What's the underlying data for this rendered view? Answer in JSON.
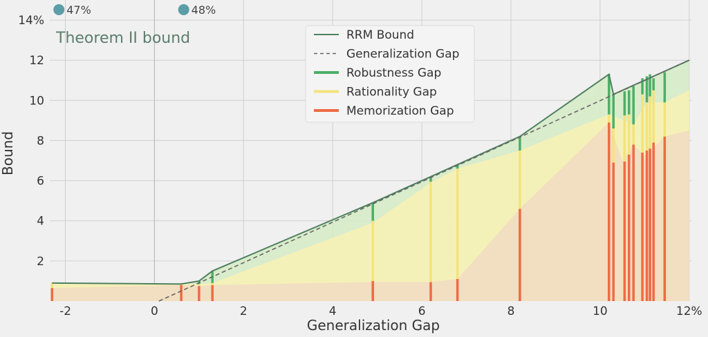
{
  "chart_data": {
    "type": "line",
    "subtitle": "Theorem II bound",
    "xlabel": "Generalization Gap",
    "ylabel": "Bound",
    "xlim": [
      -2.35,
      12.05
    ],
    "ylim": [
      0,
      15
    ],
    "x_ticks": [
      -2,
      0,
      2,
      4,
      6,
      8,
      10,
      12
    ],
    "x_tick_labels": [
      "-2",
      "0",
      "2",
      "4",
      "6",
      "8",
      "10",
      "12%"
    ],
    "y_ticks": [
      2,
      4,
      6,
      8,
      10,
      12,
      14
    ],
    "y_tick_labels": [
      "2",
      "4",
      "6",
      "8",
      "10",
      "12",
      "14%"
    ],
    "grid": true,
    "legend_position": "top-center",
    "top_markers": [
      {
        "x": -2.3,
        "label": "47%"
      },
      {
        "x": 0.5,
        "label": "48%"
      }
    ],
    "colors": {
      "rrm": "#4f7f5f",
      "gen_gap": "#666666",
      "robustness": "#4caf66",
      "rationality": "#f3e37c",
      "memorization": "#ef6a45",
      "marker": "#5b9ea7",
      "background": "#f0f0f0",
      "grid": "#cfcfcf"
    },
    "series": [
      {
        "name": "RRM Bound",
        "style": "solid",
        "x": [
          -2.3,
          0.6,
          1.0,
          1.3,
          4.9,
          6.2,
          6.8,
          8.2,
          10.2,
          10.3,
          11.4,
          12.0
        ],
        "y": [
          0.9,
          0.85,
          1.0,
          1.5,
          4.9,
          6.2,
          6.8,
          8.2,
          11.3,
          10.3,
          11.4,
          12.0
        ]
      },
      {
        "name": "Generalization Gap",
        "style": "dashed",
        "x": [
          0.1,
          12.0
        ],
        "y": [
          0.0,
          12.0
        ]
      }
    ],
    "legend": [
      {
        "name": "RRM Bound",
        "kind": "solid-line"
      },
      {
        "name": "Generalization Gap",
        "kind": "dashed-line"
      },
      {
        "name": "Robustness Gap",
        "kind": "bar"
      },
      {
        "name": "Rationality Gap",
        "kind": "bar"
      },
      {
        "name": "Memorization Gap",
        "kind": "bar"
      }
    ],
    "bars": [
      {
        "x": -2.3,
        "memorization": 0.65,
        "rationality": 0.25,
        "robustness": 0.0
      },
      {
        "x": 0.6,
        "memorization": 0.8,
        "rationality": 0.05,
        "robustness": 0.0
      },
      {
        "x": 1.0,
        "memorization": 0.75,
        "rationality": 0.1,
        "robustness": 0.15
      },
      {
        "x": 1.3,
        "memorization": 0.8,
        "rationality": 0.1,
        "robustness": 0.6
      },
      {
        "x": 4.9,
        "memorization": 1.0,
        "rationality": 3.0,
        "robustness": 0.9
      },
      {
        "x": 6.2,
        "memorization": 0.95,
        "rationality": 5.0,
        "robustness": 0.25
      },
      {
        "x": 6.8,
        "memorization": 1.1,
        "rationality": 5.5,
        "robustness": 0.2
      },
      {
        "x": 8.2,
        "memorization": 4.6,
        "rationality": 2.9,
        "robustness": 0.7
      },
      {
        "x": 10.2,
        "memorization": 8.9,
        "rationality": 0.4,
        "robustness": 2.0
      },
      {
        "x": 10.3,
        "memorization": 6.9,
        "rationality": 1.7,
        "robustness": 1.7
      },
      {
        "x": 10.55,
        "memorization": 6.95,
        "rationality": 2.3,
        "robustness": 1.2
      },
      {
        "x": 10.65,
        "memorization": 7.3,
        "rationality": 2.0,
        "robustness": 1.2
      },
      {
        "x": 10.75,
        "memorization": 7.8,
        "rationality": 1.0,
        "robustness": 1.9
      },
      {
        "x": 10.95,
        "memorization": 7.4,
        "rationality": 2.9,
        "robustness": 0.8
      },
      {
        "x": 11.05,
        "memorization": 7.5,
        "rationality": 2.4,
        "robustness": 1.3
      },
      {
        "x": 11.12,
        "memorization": 7.6,
        "rationality": 2.6,
        "robustness": 1.1
      },
      {
        "x": 11.2,
        "memorization": 7.9,
        "rationality": 2.6,
        "robustness": 0.6
      },
      {
        "x": 11.45,
        "memorization": 8.2,
        "rationality": 1.7,
        "robustness": 1.5
      }
    ],
    "bands": {
      "memorization_upper": [
        [
          -2.3,
          0.65
        ],
        [
          0.6,
          0.8
        ],
        [
          1.0,
          0.75
        ],
        [
          1.3,
          0.8
        ],
        [
          4.9,
          0.95
        ],
        [
          6.2,
          0.95
        ],
        [
          6.8,
          1.1
        ],
        [
          8.2,
          4.6
        ],
        [
          10.2,
          8.9
        ],
        [
          10.5,
          7.0
        ],
        [
          10.75,
          7.8
        ],
        [
          11.0,
          7.2
        ],
        [
          11.45,
          8.2
        ],
        [
          12.0,
          8.5
        ]
      ],
      "rationality_upper": [
        [
          -2.3,
          0.9
        ],
        [
          0.6,
          0.85
        ],
        [
          1.0,
          0.85
        ],
        [
          1.3,
          0.9
        ],
        [
          4.9,
          3.9
        ],
        [
          6.2,
          5.9
        ],
        [
          6.8,
          6.6
        ],
        [
          8.2,
          7.5
        ],
        [
          10.2,
          9.3
        ],
        [
          10.75,
          8.8
        ],
        [
          11.05,
          9.9
        ],
        [
          11.45,
          9.9
        ],
        [
          12.0,
          10.5
        ]
      ]
    }
  }
}
